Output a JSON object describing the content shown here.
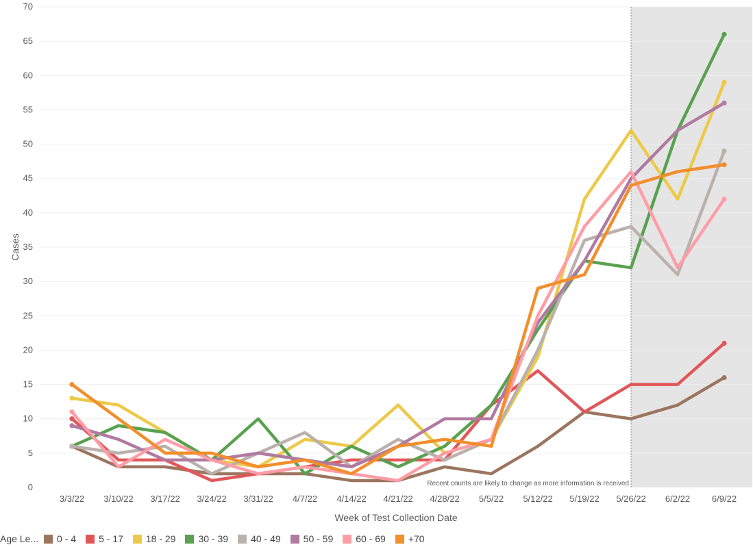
{
  "chart_data": {
    "type": "line",
    "xlabel": "Week of Test Collection Date",
    "ylabel": "Cases",
    "ylim": [
      0,
      70
    ],
    "yticks": [
      0,
      5,
      10,
      15,
      20,
      25,
      30,
      35,
      40,
      45,
      50,
      55,
      60,
      65,
      70
    ],
    "grid": true,
    "categories": [
      "3/3/22",
      "3/10/22",
      "3/17/22",
      "3/24/22",
      "3/31/22",
      "4/7/22",
      "4/14/22",
      "4/21/22",
      "4/28/22",
      "5/5/22",
      "5/12/22",
      "5/19/22",
      "5/26/22",
      "6/2/22",
      "6/9/22"
    ],
    "shaded_from": "5/26/22",
    "annotation": "Recent counts are likely to change as more information is received",
    "legend_title": "Age Le...",
    "legend_position": "bottom",
    "series": [
      {
        "name": "0 - 4",
        "color": "#9c755f",
        "values": [
          6,
          3,
          3,
          2,
          2,
          2,
          1,
          1,
          3,
          2,
          6,
          11,
          10,
          12,
          16
        ]
      },
      {
        "name": "5 - 17",
        "color": "#e15759",
        "values": [
          10,
          4,
          4,
          1,
          2,
          3,
          4,
          4,
          4,
          12,
          17,
          11,
          15,
          15,
          21
        ]
      },
      {
        "name": "18 - 29",
        "color": "#edc948",
        "values": [
          13,
          12,
          8,
          4,
          3,
          7,
          6,
          12,
          5,
          7,
          19,
          42,
          52,
          42,
          59
        ]
      },
      {
        "name": "30 - 39",
        "color": "#59a14f",
        "values": [
          6,
          9,
          8,
          4,
          10,
          2,
          6,
          3,
          6,
          12,
          23,
          33,
          32,
          52,
          66
        ]
      },
      {
        "name": "40 - 49",
        "color": "#bab0ac",
        "values": [
          6,
          5,
          6,
          2,
          5,
          8,
          3,
          7,
          4,
          7,
          20,
          36,
          38,
          31,
          49
        ]
      },
      {
        "name": "50 - 59",
        "color": "#b07aa1",
        "values": [
          9,
          7,
          4,
          4,
          5,
          4,
          3,
          6,
          10,
          10,
          24,
          33,
          45,
          52,
          56
        ]
      },
      {
        "name": "60 - 69",
        "color": "#ff9da7",
        "values": [
          11,
          3,
          7,
          4,
          2,
          3,
          2,
          1,
          5,
          7,
          25,
          38,
          46,
          32,
          42
        ]
      },
      {
        "name": "+70",
        "color": "#f28e2b",
        "values": [
          15,
          10,
          5,
          5,
          3,
          4,
          2,
          6,
          7,
          6,
          29,
          31,
          44,
          46,
          47
        ]
      }
    ]
  }
}
